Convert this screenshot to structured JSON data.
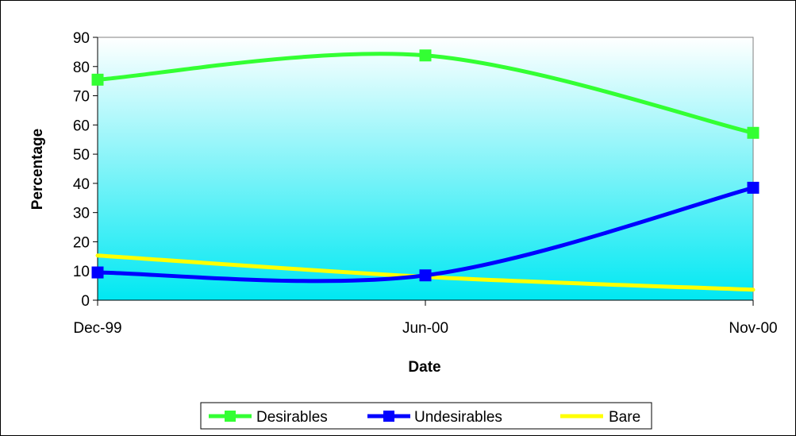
{
  "chart_data": {
    "type": "line",
    "title": "",
    "xlabel": "Date",
    "ylabel": "Percentage",
    "categories": [
      "Dec-99",
      "Jun-00",
      "Nov-00"
    ],
    "ylim": [
      0,
      90
    ],
    "yticks": [
      0,
      10,
      20,
      30,
      40,
      50,
      60,
      70,
      80,
      90
    ],
    "smooth": true,
    "grid": false,
    "plot_background": "gradient white to cyan",
    "legend": {
      "placement": "bottom"
    },
    "series": [
      {
        "name": "Desirables",
        "values": [
          75.5,
          83.8,
          57.3
        ],
        "color": "#33ff33",
        "marker": "square",
        "marker_color": "#33ff33"
      },
      {
        "name": "Undesirables",
        "values": [
          9.5,
          8.5,
          38.5
        ],
        "color": "#0000ff",
        "marker": "square",
        "marker_color": "#0000ff"
      },
      {
        "name": "Bare",
        "values": [
          15.3,
          8.0,
          3.6
        ],
        "color": "#ffff00",
        "marker": "none"
      }
    ]
  }
}
